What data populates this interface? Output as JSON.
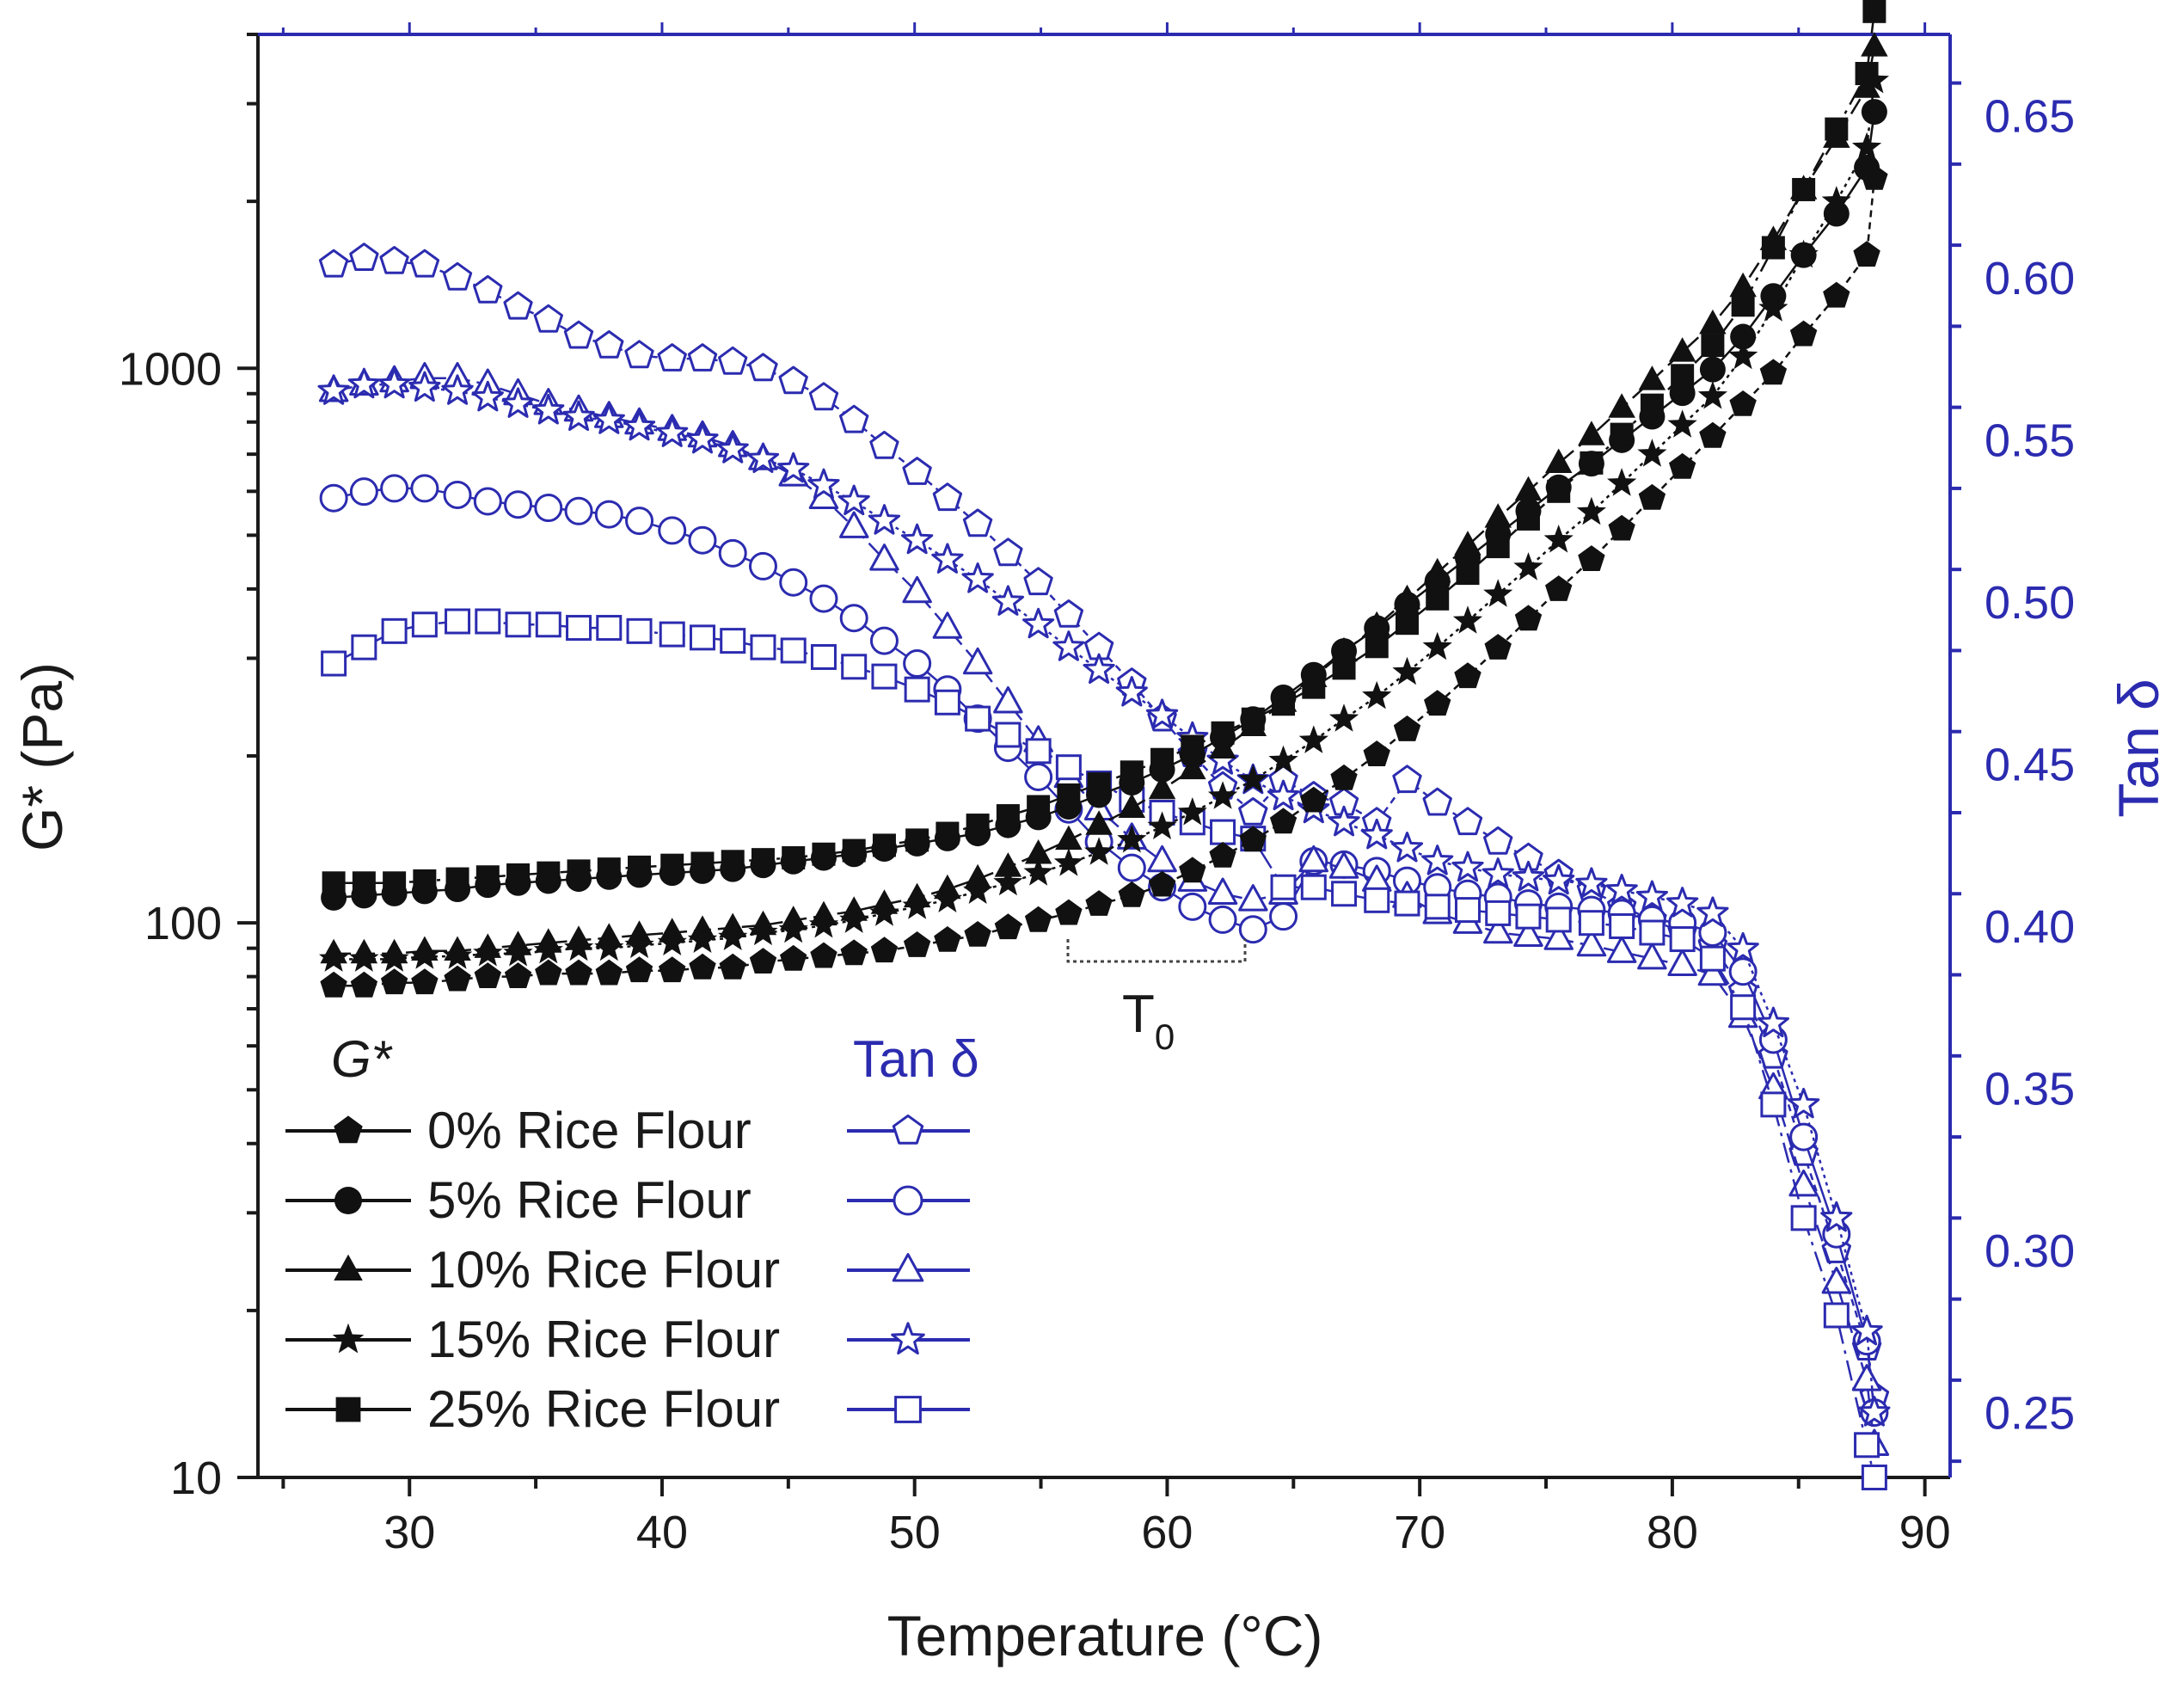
{
  "chart_data": {
    "type": "scatter",
    "xlabel": "Temperature (°C)",
    "ylabel_left": "G* (Pa)",
    "ylabel_right": "Tan δ",
    "xlim": [
      24,
      91
    ],
    "ylim_left": [
      10,
      4000
    ],
    "ylim_right": [
      0.23,
      0.675
    ],
    "yscale_left": "log",
    "x_ticks": [
      30,
      40,
      50,
      60,
      70,
      80,
      90
    ],
    "y_left_ticks": [
      10,
      100,
      1000
    ],
    "y_left_tick_labels": [
      "10",
      "100",
      "1000"
    ],
    "y_right_ticks": [
      0.25,
      0.3,
      0.35,
      0.4,
      0.45,
      0.5,
      0.55,
      0.6,
      0.65
    ],
    "y_right_tick_labels": [
      "0.25",
      "0.30",
      "0.35",
      "0.40",
      "0.45",
      "0.50",
      "0.55",
      "0.60",
      "0.65"
    ],
    "legend": {
      "placement": "bottom-left",
      "g_header": "G*",
      "tan_header": "Tan δ",
      "entries": [
        "0% Rice Flour",
        "5% Rice Flour",
        "10% Rice Flour",
        "15% Rice Flour",
        "25% Rice Flour"
      ]
    },
    "annotation": {
      "text": "T",
      "subscript": "0",
      "x_range": [
        56,
        63
      ],
      "y": 92
    },
    "x": [
      27.0,
      28.2,
      29.4,
      30.6,
      31.9,
      33.1,
      34.3,
      35.5,
      36.7,
      37.9,
      39.1,
      40.4,
      41.6,
      42.8,
      44.0,
      45.2,
      46.4,
      47.6,
      48.8,
      50.1,
      51.3,
      52.5,
      53.7,
      54.9,
      56.1,
      57.3,
      58.6,
      59.8,
      61.0,
      62.2,
      63.4,
      64.6,
      65.8,
      67.0,
      68.3,
      69.5,
      70.7,
      71.9,
      73.1,
      74.3,
      75.5,
      76.8,
      78.0,
      79.2,
      80.4,
      81.6,
      82.8,
      84.0,
      85.2,
      86.5,
      87.7,
      88.0
    ],
    "series_gstar": [
      {
        "name": "0% Rice Flour",
        "marker": "pentagon",
        "values": [
          77,
          77,
          78,
          78,
          79,
          80,
          80,
          81,
          81,
          81,
          82,
          82,
          83,
          83,
          85,
          86,
          87,
          88,
          89,
          91,
          93,
          95,
          98,
          101,
          104,
          108,
          112,
          117,
          124,
          132,
          141,
          152,
          166,
          182,
          201,
          223,
          248,
          278,
          313,
          353,
          399,
          452,
          513,
          583,
          663,
          754,
          860,
          980,
          1150,
          1350,
          1600,
          2200
        ]
      },
      {
        "name": "5% Rice Flour",
        "marker": "circle",
        "values": [
          111,
          112,
          113,
          114,
          115,
          117,
          118,
          119,
          120,
          121,
          122,
          123,
          124,
          125,
          127,
          129,
          131,
          133,
          136,
          139,
          142,
          145,
          150,
          155,
          162,
          170,
          179,
          189,
          201,
          216,
          233,
          255,
          280,
          309,
          340,
          375,
          413,
          455,
          502,
          553,
          610,
          673,
          742,
          818,
          902,
          995,
          1140,
          1350,
          1600,
          1900,
          2300,
          2900
        ]
      },
      {
        "name": "10% Rice Flour",
        "marker": "triangle",
        "values": [
          88,
          88,
          88,
          89,
          89,
          90,
          91,
          92,
          93,
          94,
          95,
          96,
          97,
          98,
          99,
          101,
          103,
          105,
          108,
          111,
          115,
          120,
          126,
          133,
          141,
          150,
          161,
          174,
          189,
          206,
          226,
          250,
          277,
          308,
          343,
          383,
          428,
          479,
          537,
          601,
          674,
          756,
          848,
          951,
          1070,
          1200,
          1400,
          1700,
          2100,
          2600,
          3200,
          3800
        ]
      },
      {
        "name": "15% Rice Flour",
        "marker": "star",
        "values": [
          86,
          86,
          86,
          87,
          87,
          88,
          88,
          89,
          90,
          90,
          91,
          92,
          93,
          94,
          96,
          97,
          99,
          101,
          104,
          107,
          110,
          114,
          118,
          123,
          128,
          134,
          141,
          149,
          158,
          169,
          181,
          196,
          213,
          233,
          256,
          283,
          314,
          350,
          391,
          437,
          490,
          550,
          620,
          700,
          790,
          890,
          1050,
          1280,
          1600,
          2000,
          2500,
          3300
        ]
      },
      {
        "name": "25% Rice Flour",
        "marker": "square",
        "values": [
          118,
          118,
          118,
          119,
          120,
          121,
          122,
          123,
          124,
          125,
          126,
          127,
          128,
          129,
          130,
          131,
          133,
          135,
          138,
          141,
          145,
          150,
          156,
          162,
          170,
          178,
          187,
          197,
          208,
          220,
          233,
          248,
          266,
          288,
          315,
          347,
          384,
          427,
          477,
          535,
          600,
          675,
          760,
          858,
          970,
          1100,
          1300,
          1650,
          2100,
          2700,
          3400,
          4400
        ]
      }
    ],
    "series_tan": [
      {
        "name": "0% Rice Flour",
        "marker": "pentagon",
        "values": [
          0.604,
          0.606,
          0.605,
          0.604,
          0.6,
          0.596,
          0.591,
          0.587,
          0.582,
          0.579,
          0.576,
          0.575,
          0.575,
          0.574,
          0.572,
          0.568,
          0.563,
          0.556,
          0.548,
          0.54,
          0.532,
          0.524,
          0.515,
          0.506,
          0.496,
          0.486,
          0.475,
          0.464,
          0.453,
          0.443,
          0.435,
          0.445,
          0.44,
          0.438,
          0.432,
          0.445,
          0.438,
          0.432,
          0.426,
          0.421,
          0.416,
          0.411,
          0.406,
          0.402,
          0.398,
          0.394,
          0.38,
          0.36,
          0.33,
          0.3,
          0.27,
          0.255
        ]
      },
      {
        "name": "5% Rice Flour",
        "marker": "circle",
        "values": [
          0.532,
          0.534,
          0.535,
          0.535,
          0.533,
          0.531,
          0.53,
          0.529,
          0.528,
          0.527,
          0.525,
          0.522,
          0.519,
          0.515,
          0.511,
          0.506,
          0.501,
          0.495,
          0.488,
          0.481,
          0.473,
          0.464,
          0.455,
          0.446,
          0.436,
          0.426,
          0.418,
          0.412,
          0.406,
          0.402,
          0.399,
          0.403,
          0.42,
          0.419,
          0.417,
          0.414,
          0.412,
          0.41,
          0.409,
          0.407,
          0.406,
          0.405,
          0.404,
          0.402,
          0.401,
          0.398,
          0.386,
          0.365,
          0.335,
          0.305,
          0.272,
          0.25
        ]
      },
      {
        "name": "10% Rice Flour",
        "marker": "triangle",
        "values": [
          0.565,
          0.567,
          0.568,
          0.569,
          0.569,
          0.567,
          0.564,
          0.561,
          0.559,
          0.557,
          0.555,
          0.553,
          0.551,
          0.548,
          0.544,
          0.539,
          0.532,
          0.523,
          0.513,
          0.503,
          0.492,
          0.481,
          0.469,
          0.457,
          0.446,
          0.436,
          0.427,
          0.42,
          0.414,
          0.41,
          0.408,
          0.41,
          0.42,
          0.418,
          0.414,
          0.409,
          0.404,
          0.401,
          0.398,
          0.397,
          0.396,
          0.394,
          0.392,
          0.39,
          0.388,
          0.385,
          0.372,
          0.35,
          0.32,
          0.29,
          0.26,
          0.24
        ]
      },
      {
        "name": "15% Rice Flour",
        "marker": "star",
        "values": [
          0.565,
          0.567,
          0.567,
          0.566,
          0.565,
          0.563,
          0.561,
          0.559,
          0.557,
          0.556,
          0.554,
          0.552,
          0.55,
          0.547,
          0.544,
          0.541,
          0.536,
          0.531,
          0.525,
          0.519,
          0.513,
          0.507,
          0.5,
          0.493,
          0.486,
          0.479,
          0.472,
          0.465,
          0.458,
          0.451,
          0.445,
          0.44,
          0.436,
          0.432,
          0.428,
          0.424,
          0.42,
          0.418,
          0.416,
          0.415,
          0.414,
          0.413,
          0.411,
          0.409,
          0.407,
          0.404,
          0.393,
          0.37,
          0.345,
          0.31,
          0.275,
          0.25
        ]
      },
      {
        "name": "25% Rice Flour",
        "marker": "square",
        "values": [
          0.481,
          0.486,
          0.491,
          0.493,
          0.494,
          0.494,
          0.493,
          0.493,
          0.492,
          0.492,
          0.491,
          0.49,
          0.489,
          0.488,
          0.486,
          0.485,
          0.483,
          0.48,
          0.477,
          0.473,
          0.469,
          0.464,
          0.459,
          0.454,
          0.449,
          0.444,
          0.439,
          0.435,
          0.432,
          0.429,
          0.427,
          0.412,
          0.412,
          0.41,
          0.408,
          0.407,
          0.406,
          0.405,
          0.404,
          0.403,
          0.402,
          0.401,
          0.4,
          0.398,
          0.396,
          0.39,
          0.375,
          0.345,
          0.31,
          0.28,
          0.24,
          0.23
        ]
      }
    ]
  },
  "colors": {
    "black": "#111111",
    "blue": "#2b2bb0",
    "axis": "#1a1a1a"
  }
}
